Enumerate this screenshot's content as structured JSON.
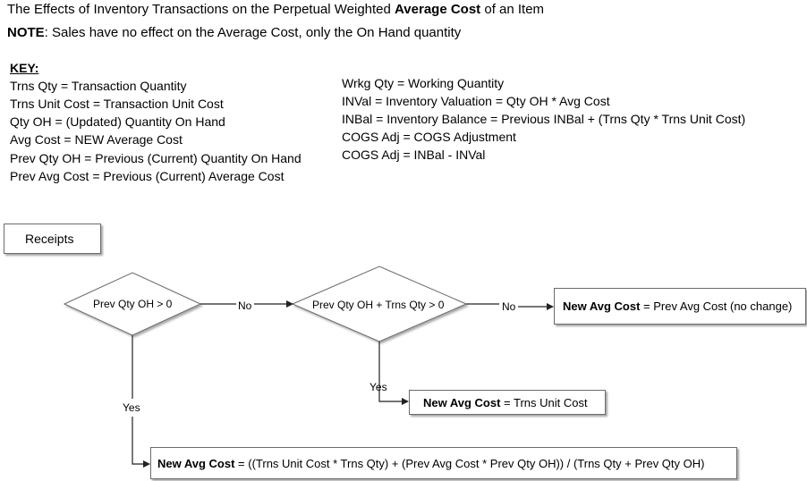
{
  "title": {
    "prefix": "The Effects of Inventory Transactions on the Perpetual Weighted ",
    "bold": "Average Cost",
    "suffix": " of an Item"
  },
  "note": {
    "bold": "NOTE",
    "text": ": Sales have no effect on the Average Cost, only the On Hand quantity"
  },
  "key": {
    "title": "KEY:",
    "left": [
      "Trns Qty = Transaction Quantity",
      "Trns Unit Cost = Transaction Unit Cost",
      "Qty OH = (Updated) Quantity On Hand",
      "Avg Cost = NEW Average Cost",
      "Prev Qty OH = Previous (Current) Quantity On Hand",
      "Prev Avg Cost = Previous (Current) Average Cost"
    ],
    "right": [
      "Wrkg Qty = Working Quantity",
      "INVal = Inventory Valuation = Qty OH * Avg Cost",
      "INBal = Inventory Balance = Previous INBal + (Trns Qty * Trns Unit Cost)",
      "COGS Adj = COGS Adjustment",
      "COGS Adj = INBal - INVal"
    ]
  },
  "flow": {
    "start_label": "Receipts",
    "decision1": "Prev Qty OH > 0",
    "decision2": "Prev Qty OH + Trns Qty > 0",
    "edge_no_1": "No",
    "edge_no_2": "No",
    "edge_yes_1": "Yes",
    "edge_yes_2": "Yes",
    "result_no_change": {
      "bold": "New Avg Cost",
      "text": " = Prev Avg Cost (no change)"
    },
    "result_unit_cost": {
      "bold": "New Avg Cost",
      "text": " = Trns Unit Cost"
    },
    "result_weighted": {
      "bold": "New Avg Cost",
      "text": " = ((Trns Unit Cost * Trns Qty) + (Prev Avg Cost * Prev Qty OH)) / (Trns Qty + Prev Qty OH)"
    }
  }
}
